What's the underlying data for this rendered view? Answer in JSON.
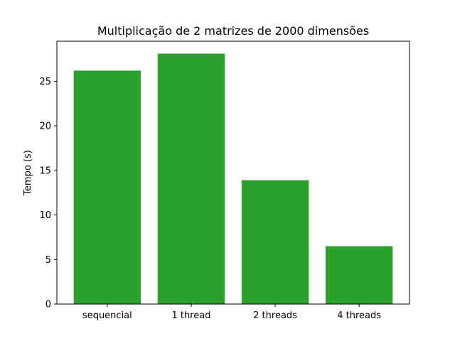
{
  "chart_data": {
    "type": "bar",
    "title": "Multiplicação de 2 matrizes de 2000 dimensões",
    "xlabel": "",
    "ylabel": "Tempo (s)",
    "categories": [
      "sequencial",
      "1 thread",
      "2 threads",
      "4 threads"
    ],
    "values": [
      26.2,
      28.1,
      13.9,
      6.5
    ],
    "ylim": [
      0,
      29.5
    ],
    "yticks": [
      0,
      5,
      10,
      15,
      20,
      25
    ],
    "grid": false,
    "bar_color": "#2ca02c"
  }
}
